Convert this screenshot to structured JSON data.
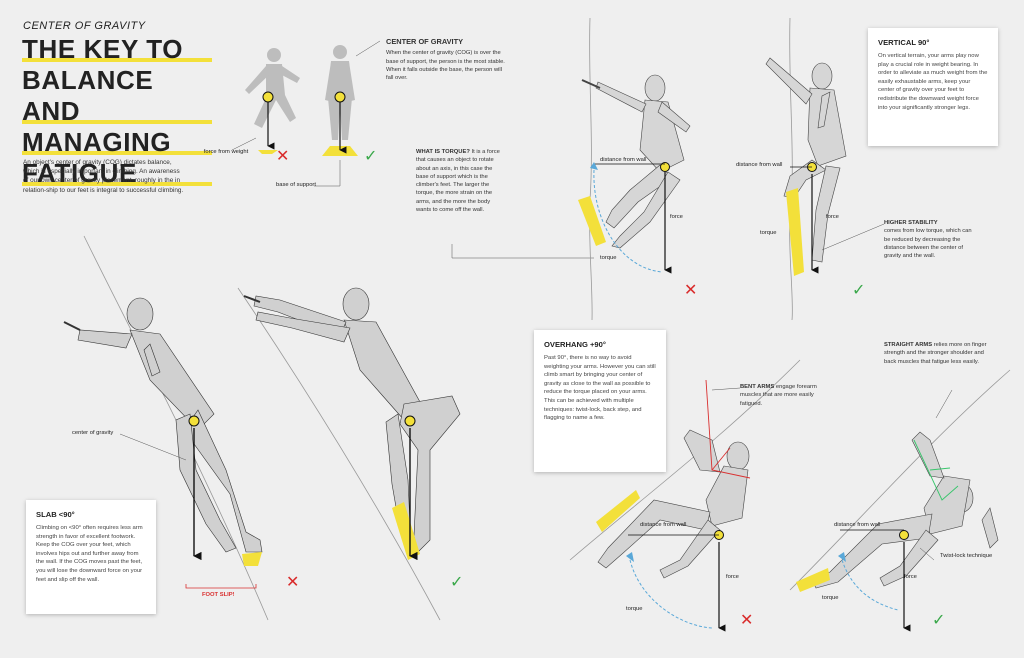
{
  "header": {
    "kicker": "CENTER OF GRAVITY",
    "title_lines": [
      "THE KEY TO",
      "BALANCE AND",
      "MANAGING",
      "FATIGUE"
    ],
    "intro": "An object's center of gravity (COG) dictates balance, which is especially important in climbing. An awareness of our own center of gravity placement–roughly in the in relation-ship to our feet is integral to successful climbing."
  },
  "cog_section": {
    "title": "CENTER OF GRAVITY",
    "body": "When the center of gravity (COG) is over the base of support, the person is the most stable. When it falls outside the base, the person will fall over.",
    "label_force_from_weight": "force from weight",
    "label_base_of_support": "base of support"
  },
  "torque_note": {
    "title": "WHAT IS TORQUE?",
    "body": "It is a force that causes an object to rotate about an axis, in this case the base of support which is the climber's feet. The larger the torque, the more strain on the arms, and the more the body wants to come off the wall."
  },
  "vertical_card": {
    "title": "VERTICAL 90°",
    "body": "On vertical terrain, your arms play now play a crucial role in weight bearing. In order to alleviate as much weight from the easily exhaustable arms, keep your center of gravity over your feet to redistribute the downward weight force into your significantly stronger legs."
  },
  "higher_stability": {
    "title": "HIGHER STABILITY",
    "body": "comes from low torque, which can be reduced by decreasing the distance between the center of gravity and the wall."
  },
  "overhang_card": {
    "title": "OVERHANG +90°",
    "body": "Past 90°, there is no way to avoid weighting your arms. However you can still climb smart by bringing your center of gravity as close to the wall as possible to reduce the torque placed on your arms. This can be achieved with multiple techniques: twist-lock, back step, and flagging to name a few."
  },
  "bent_arms": {
    "title": "BENT ARMS",
    "body": "engage forearm muscles that are more easily fatigued."
  },
  "straight_arms": {
    "title": "STRAIGHT ARMS",
    "body": "relies more on finger strength and the stronger shoulder and back muscles that fatigue less easily."
  },
  "slab_card": {
    "title": "SLAB <90°",
    "body": "Climbing on <90° often requires less arm strength in favor of excellent footwork. Keep the COG over your feet, which involves hips out and further away from the wall. If the COG moves past the feet, you will lose the downward force on your feet and slip off the wall."
  },
  "labels": {
    "distance_from_wall": "distance from wall",
    "force": "force",
    "torque": "torque",
    "center_of_gravity": "center of gravity",
    "foot_slip": "FOOT SLIP!",
    "twist_lock": "Twist-lock technique"
  },
  "marks": {
    "wrong": "✕",
    "right": "✓"
  },
  "colors": {
    "accent_yellow": "#f3e03a",
    "wrong_red": "#d92b2b",
    "right_green": "#3aa84a",
    "torque_blue": "#5aa8d8"
  }
}
